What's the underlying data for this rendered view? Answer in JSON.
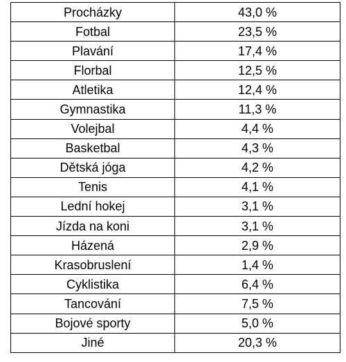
{
  "table": {
    "rows": [
      {
        "activity": "Procházky",
        "value": "43,0 %"
      },
      {
        "activity": "Fotbal",
        "value": "23,5 %"
      },
      {
        "activity": "Plavání",
        "value": "17,4 %"
      },
      {
        "activity": "Florbal",
        "value": "12,5 %"
      },
      {
        "activity": "Atletika",
        "value": "12,4 %"
      },
      {
        "activity": "Gymnastika",
        "value": "11,3 %"
      },
      {
        "activity": "Volejbal",
        "value": "4,4 %"
      },
      {
        "activity": "Basketbal",
        "value": "4,3 %"
      },
      {
        "activity": "Dětská jóga",
        "value": "4,2 %"
      },
      {
        "activity": "Tenis",
        "value": "4,1 %"
      },
      {
        "activity": "Lední hokej",
        "value": "3,1 %"
      },
      {
        "activity": "Jízda na koni",
        "value": "3,1 %"
      },
      {
        "activity": "Házená",
        "value": "2,9 %"
      },
      {
        "activity": "Krasobruslení",
        "value": "1,4 %"
      },
      {
        "activity": "Cyklistika",
        "value": "6,4 %"
      },
      {
        "activity": "Tancování",
        "value": "7,5 %"
      },
      {
        "activity": "Bojové sporty",
        "value": "5,0 %"
      },
      {
        "activity": "Jiné",
        "value": "20,3 %"
      }
    ]
  }
}
